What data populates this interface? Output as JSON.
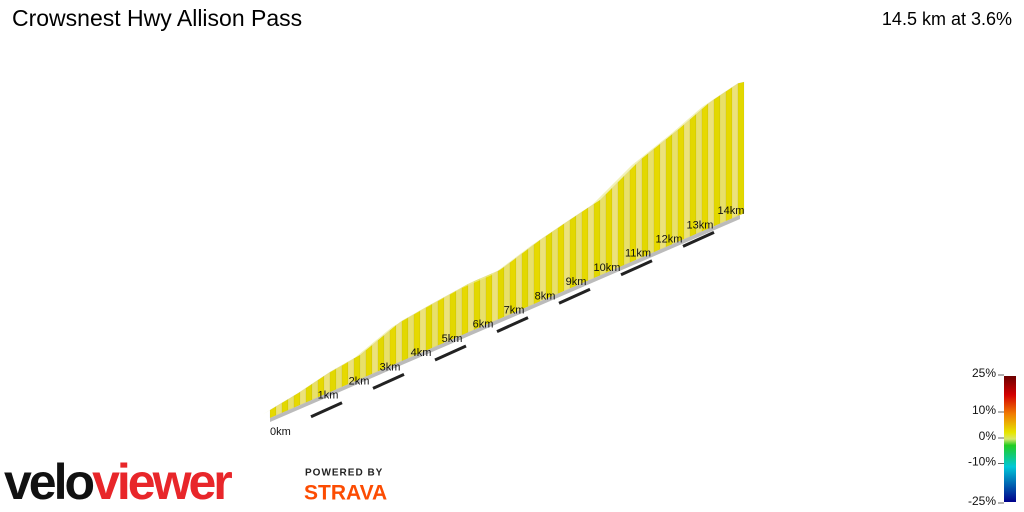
{
  "header": {
    "title": "Crowsnest Hwy Allison Pass",
    "summary": "14.5 km at 3.6%"
  },
  "distance_axis": {
    "ticks": [
      {
        "value": 0,
        "label": "0km"
      },
      {
        "value": 1,
        "label": "1km"
      },
      {
        "value": 2,
        "label": "2km"
      },
      {
        "value": 3,
        "label": "3km"
      },
      {
        "value": 4,
        "label": "4km"
      },
      {
        "value": 5,
        "label": "5km"
      },
      {
        "value": 6,
        "label": "6km"
      },
      {
        "value": 7,
        "label": "7km"
      },
      {
        "value": 8,
        "label": "8km"
      },
      {
        "value": 9,
        "label": "9km"
      },
      {
        "value": 10,
        "label": "10km"
      },
      {
        "value": 11,
        "label": "11km"
      },
      {
        "value": 12,
        "label": "12km"
      },
      {
        "value": 13,
        "label": "13km"
      },
      {
        "value": 14,
        "label": "14km"
      }
    ]
  },
  "gradient_scale": {
    "ticks": [
      {
        "value": 25,
        "label": "25%"
      },
      {
        "value": 10,
        "label": "10%"
      },
      {
        "value": 0,
        "label": "0%"
      },
      {
        "value": -10,
        "label": "-10%"
      },
      {
        "value": -25,
        "label": "-25%"
      }
    ]
  },
  "brand": {
    "logo_start": "velo",
    "logo_end": "viewer",
    "powered": "POWERED BY",
    "strava": "STRAVA"
  }
}
